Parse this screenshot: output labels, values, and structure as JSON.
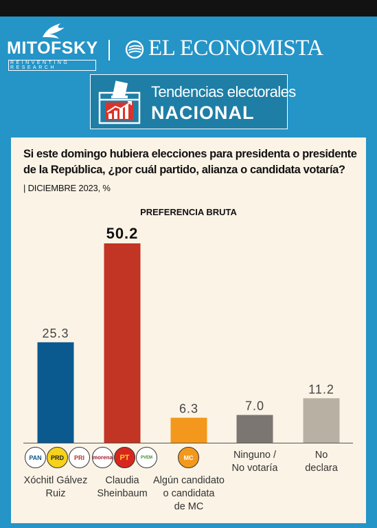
{
  "header": {
    "brand_left": "MITOFSKY",
    "brand_left_tagline": "REINVENTING RESEARCH",
    "brand_right": "EL ECONOMISTA",
    "banner_line1": "Tendencias electorales",
    "banner_line2": "NACIONAL"
  },
  "question": "Si este domingo hubiera elecciones para presidenta o presidente de la República, ¿por cuál partido, alianza o candidata votaría?",
  "date_line": "| DICIEMBRE 2023, %",
  "party_logos": {
    "xochitl": [
      "PAN",
      "PRD",
      "PRI"
    ],
    "claudia": [
      "morena",
      "PT",
      "PVEM"
    ],
    "mc": [
      "MC"
    ]
  },
  "colors": {
    "background": "#2594c7",
    "card": "#fbf3e6",
    "xochitl": "#0a5a8f",
    "claudia": "#c23424",
    "mc": "#f3981c",
    "ninguno": "#7c7673",
    "no_declara": "#b9b0a4"
  },
  "chart_data": {
    "type": "bar",
    "title": "PREFERENCIA BRUTA",
    "xlabel": "",
    "ylabel": "",
    "categories": [
      "Xóchitl Gálvez Ruiz",
      "Claudia Sheinbaum",
      "Algún candidato o candidata de MC",
      "Ninguno / No votaría",
      "No declara"
    ],
    "category_lines": [
      [
        "Xóchitl Gálvez",
        "Ruiz"
      ],
      [
        "Claudia",
        "Sheinbaum"
      ],
      [
        "Algún candidato",
        "o candidata",
        "de MC"
      ],
      [
        "Ninguno /",
        "No votaría"
      ],
      [
        "No",
        "declara"
      ]
    ],
    "values": [
      25.3,
      50.2,
      6.3,
      7.0,
      11.2
    ],
    "value_labels": [
      "25.3",
      "50.2",
      "6.3",
      "7.0",
      "11.2"
    ],
    "bar_colors": [
      "#0a5a8f",
      "#c23424",
      "#f3981c",
      "#7c7673",
      "#b9b0a4"
    ],
    "highlight_index": 1,
    "ylim": [
      0,
      50.2
    ],
    "grid": false,
    "legend": "none"
  }
}
